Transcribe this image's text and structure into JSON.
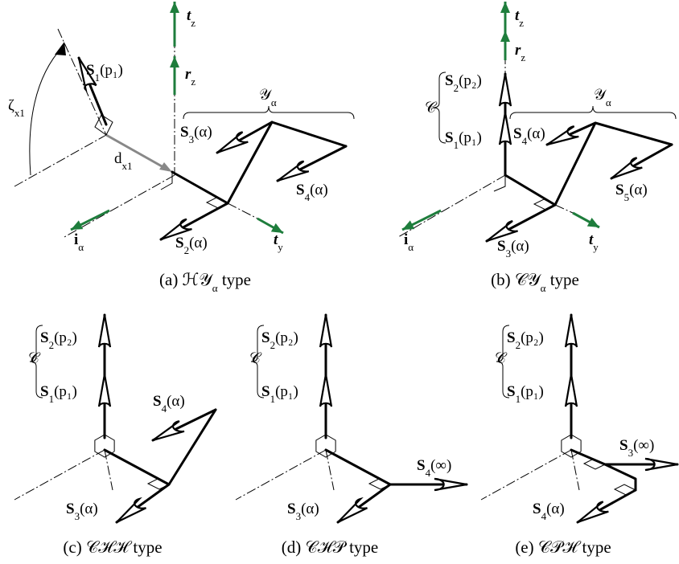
{
  "panels": [
    {
      "caption": {
        "base": "(a) ℋ𝒴",
        "sub": "α",
        "tail": " type"
      },
      "labels": [
        {
          "base": "t",
          "sub": "z"
        },
        {
          "base": "r",
          "sub": "z"
        },
        {
          "base": "S",
          "sub": "1",
          "tail": "(p₁)"
        },
        {
          "base": "𝒴",
          "sub": "α"
        },
        {
          "base": "ζ",
          "sub": "x1"
        },
        {
          "base": "d",
          "sub": "x1"
        },
        {
          "base": "S",
          "sub": "3",
          "tail": "(α)"
        },
        {
          "base": "S",
          "sub": "4",
          "tail": "(α)"
        },
        {
          "base": "S",
          "sub": "2",
          "tail": "(α)"
        },
        {
          "base": "i",
          "sub": "α"
        },
        {
          "base": "t",
          "sub": "y"
        }
      ]
    },
    {
      "caption": {
        "base": "(b) 𝒞𝒴",
        "sub": "α",
        "tail": " type"
      },
      "labels": [
        {
          "base": "t",
          "sub": "z"
        },
        {
          "base": "r",
          "sub": "z"
        },
        {
          "base": "S",
          "sub": "2",
          "tail": "(p₂)"
        },
        {
          "base": "𝒞"
        },
        {
          "base": "S",
          "sub": "1",
          "tail": "(p₁)"
        },
        {
          "base": "𝒴",
          "sub": "α"
        },
        {
          "base": "S",
          "sub": "4",
          "tail": "(α)"
        },
        {
          "base": "S",
          "sub": "5",
          "tail": "(α)"
        },
        {
          "base": "S",
          "sub": "3",
          "tail": "(α)"
        },
        {
          "base": "i",
          "sub": "α"
        },
        {
          "base": "t",
          "sub": "y"
        }
      ]
    },
    {
      "caption": {
        "base": "(c) 𝒞ℋℋ type"
      },
      "labels": [
        {
          "base": "S",
          "sub": "2",
          "tail": "(p₂)"
        },
        {
          "base": "𝒞"
        },
        {
          "base": "S",
          "sub": "1",
          "tail": "(p₁)"
        },
        {
          "base": "S",
          "sub": "4",
          "tail": "(α)"
        },
        {
          "base": "S",
          "sub": "3",
          "tail": "(α)"
        }
      ]
    },
    {
      "caption": {
        "base": "(d) 𝒞ℋ𝒫 type"
      },
      "labels": [
        {
          "base": "S",
          "sub": "2",
          "tail": "(p₂)"
        },
        {
          "base": "𝒞"
        },
        {
          "base": "S",
          "sub": "1",
          "tail": "(p₁)"
        },
        {
          "base": "S",
          "sub": "4",
          "tail": "(∞)"
        },
        {
          "base": "S",
          "sub": "3",
          "tail": "(α)"
        }
      ]
    },
    {
      "caption": {
        "base": "(e) 𝒞𝒫ℋ type"
      },
      "labels": [
        {
          "base": "S",
          "sub": "2",
          "tail": "(p₂)"
        },
        {
          "base": "𝒞"
        },
        {
          "base": "S",
          "sub": "1",
          "tail": "(p₁)"
        },
        {
          "base": "S",
          "sub": "3",
          "tail": "(∞)"
        },
        {
          "base": "S",
          "sub": "4",
          "tail": "(α)"
        }
      ]
    }
  ]
}
